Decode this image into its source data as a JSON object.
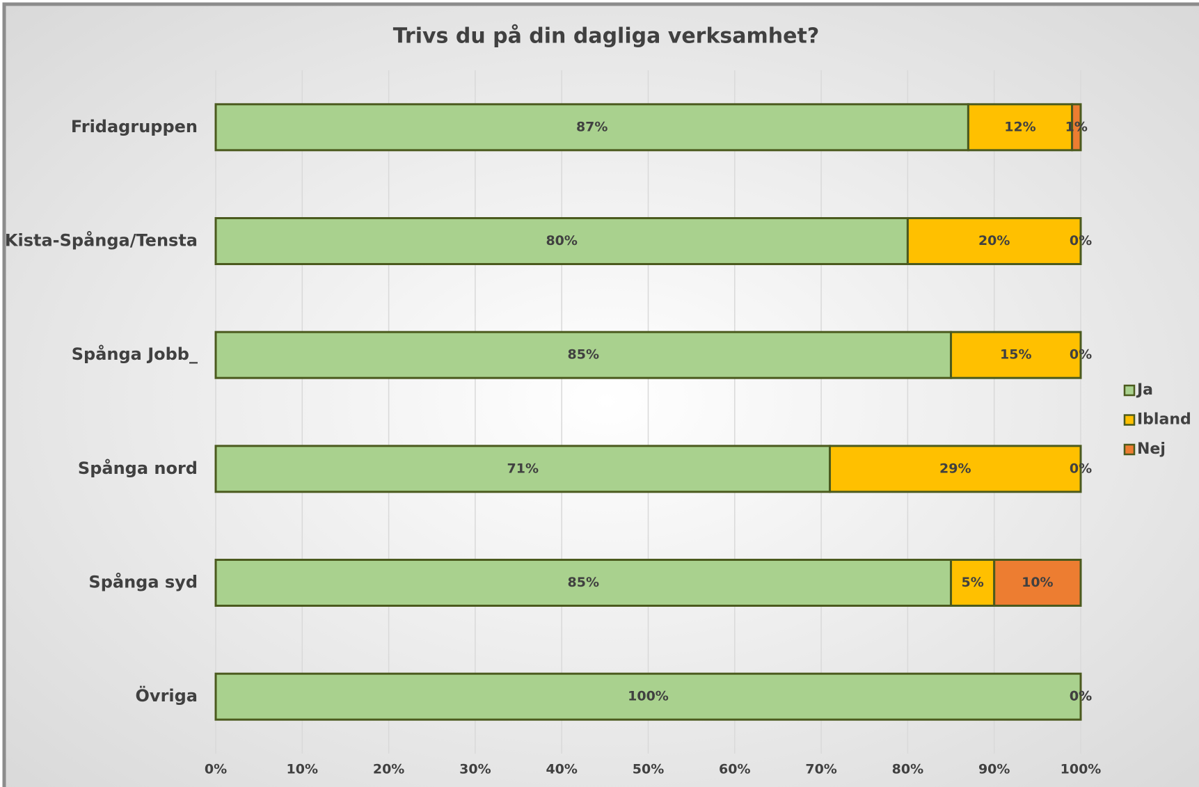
{
  "chart_data": {
    "type": "stacked_bar_horizontal",
    "title": "Trivs du på din dagliga verksamhet?",
    "categories": [
      "Fridagruppen",
      "Kista-Spånga/Tensta",
      "Spånga Jobb_",
      "Spånga nord",
      "Spånga syd",
      "Övriga"
    ],
    "series": [
      {
        "name": "Ja",
        "color": "#a9d18e",
        "values": [
          87,
          80,
          85,
          71,
          85,
          100
        ],
        "value_labels": [
          "87%",
          "80%",
          "85%",
          "71%",
          "85%",
          "100%"
        ]
      },
      {
        "name": "Ibland",
        "color": "#ffc000",
        "values": [
          12,
          20,
          15,
          29,
          5,
          0
        ],
        "value_labels": [
          "12%",
          "20%",
          "15%",
          "29%",
          "5%",
          "0%"
        ]
      },
      {
        "name": "Nej",
        "color": "#ed7d31",
        "values": [
          1,
          0,
          0,
          0,
          10,
          0
        ],
        "value_labels": [
          "1%",
          "0%",
          "0%",
          "0%",
          "10%",
          "0%"
        ]
      }
    ],
    "xlim": [
      0,
      100
    ],
    "xticks": [
      {
        "value": 0,
        "label": "0%"
      },
      {
        "value": 10,
        "label": "10%"
      },
      {
        "value": 20,
        "label": "20%"
      },
      {
        "value": 30,
        "label": "30%"
      },
      {
        "value": 40,
        "label": "40%"
      },
      {
        "value": 50,
        "label": "50%"
      },
      {
        "value": 60,
        "label": "60%"
      },
      {
        "value": 70,
        "label": "70%"
      },
      {
        "value": 80,
        "label": "80%"
      },
      {
        "value": 90,
        "label": "90%"
      },
      {
        "value": 100,
        "label": "100%"
      }
    ],
    "grid": true,
    "legend": "right"
  }
}
